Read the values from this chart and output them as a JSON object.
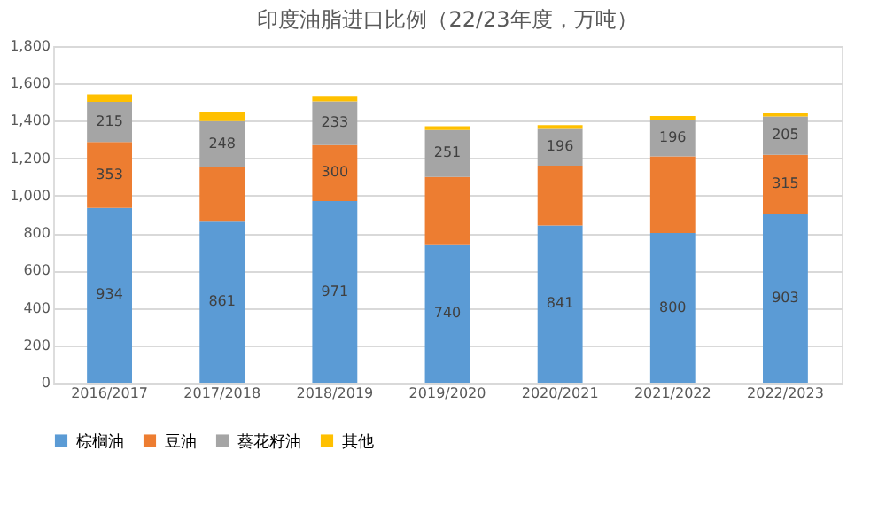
{
  "chart_data": {
    "type": "bar",
    "title": "印度油脂进口比例（22/23年度，万吨）",
    "stacked": true,
    "categories": [
      "2016/2017",
      "2017/2018",
      "2018/2019",
      "2019/2020",
      "2020/2021",
      "2021/2022",
      "2022/2023"
    ],
    "series": [
      {
        "name": "棕榈油",
        "color": "#5b9bd5",
        "values": [
          934,
          861,
          971,
          740,
          841,
          800,
          903
        ],
        "value_labels": [
          "934",
          "861",
          "971",
          "740",
          "841",
          "800",
          "903"
        ]
      },
      {
        "name": "豆油",
        "color": "#ed7d31",
        "values": [
          353,
          290,
          300,
          360,
          320,
          410,
          315
        ],
        "value_labels": [
          "353",
          null,
          "300",
          null,
          null,
          null,
          "315"
        ]
      },
      {
        "name": "葵花籽油",
        "color": "#a5a5a5",
        "values": [
          215,
          248,
          233,
          251,
          196,
          196,
          205
        ],
        "value_labels": [
          "215",
          "248",
          "233",
          "251",
          "196",
          "196",
          "205"
        ]
      },
      {
        "name": "其他",
        "color": "#ffc000",
        "values": [
          40,
          50,
          30,
          20,
          20,
          20,
          20
        ]
      }
    ],
    "ylim": [
      0,
      1800
    ],
    "yticks": [
      0,
      200,
      400,
      600,
      800,
      {
        "value": 1000,
        "label": "1,000"
      },
      {
        "value": 1200,
        "label": "1,200"
      },
      {
        "value": 1400,
        "label": "1,400"
      },
      {
        "value": 1600,
        "label": "1,600"
      },
      {
        "value": 1800,
        "label": "1,800"
      }
    ],
    "grid": "y",
    "legend": "bottom"
  }
}
